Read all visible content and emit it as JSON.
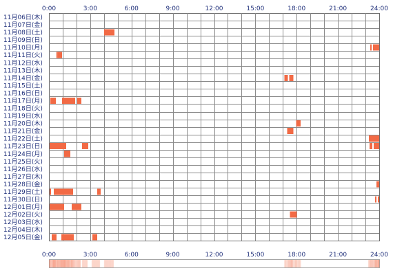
{
  "chart_data": {
    "type": "heatmap",
    "title": "",
    "xlabel": "",
    "ylabel": "",
    "x_unit": "hour of day",
    "xlim": [
      0,
      24
    ],
    "x_ticks": [
      "0:00",
      "3:00",
      "6:00",
      "9:00",
      "12:00",
      "15:00",
      "18:00",
      "21:00",
      "24:00"
    ],
    "grid_step_hours": 1,
    "bar_color": "#f26a45",
    "summary_strip": true,
    "rows": [
      {
        "label": "11月06日(木)",
        "intervals": []
      },
      {
        "label": "11月07日(金)",
        "intervals": []
      },
      {
        "label": "11月08日(土)",
        "intervals": [
          [
            4.0,
            4.75
          ]
        ]
      },
      {
        "label": "11月09日(日)",
        "intervals": []
      },
      {
        "label": "11月10日(月)",
        "intervals": [
          [
            23.35,
            23.45
          ],
          [
            23.55,
            24.0
          ]
        ]
      },
      {
        "label": "11月11日(火)",
        "intervals": [
          [
            0.5,
            0.55
          ],
          [
            0.6,
            0.95
          ]
        ]
      },
      {
        "label": "11月12日(水)",
        "intervals": []
      },
      {
        "label": "11月13日(木)",
        "intervals": []
      },
      {
        "label": "11月14日(金)",
        "intervals": [
          [
            17.1,
            17.35
          ],
          [
            17.45,
            17.75
          ]
        ]
      },
      {
        "label": "11月15日(土)",
        "intervals": []
      },
      {
        "label": "11月16日(日)",
        "intervals": []
      },
      {
        "label": "11月17日(月)",
        "intervals": [
          [
            0.1,
            0.5
          ],
          [
            0.95,
            1.9
          ],
          [
            2.05,
            2.35
          ]
        ]
      },
      {
        "label": "11月18日(火)",
        "intervals": []
      },
      {
        "label": "11月19日(水)",
        "intervals": []
      },
      {
        "label": "11月20日(木)",
        "intervals": [
          [
            17.95,
            18.3
          ]
        ]
      },
      {
        "label": "11月21日(金)",
        "intervals": [
          [
            17.3,
            17.75
          ]
        ]
      },
      {
        "label": "11月22日(土)",
        "intervals": [
          [
            23.25,
            24.0
          ]
        ]
      },
      {
        "label": "11月23日(日)",
        "intervals": [
          [
            0.05,
            1.25
          ],
          [
            2.4,
            2.85
          ],
          [
            23.3,
            23.5
          ],
          [
            23.6,
            24.0
          ]
        ]
      },
      {
        "label": "11月24日(月)",
        "intervals": [
          [
            1.1,
            1.55
          ]
        ]
      },
      {
        "label": "11月25日(火)",
        "intervals": []
      },
      {
        "label": "11月26日(水)",
        "intervals": []
      },
      {
        "label": "11月27日(木)",
        "intervals": []
      },
      {
        "label": "11月28日(金)",
        "intervals": [
          [
            23.8,
            24.0
          ]
        ]
      },
      {
        "label": "11月29日(土)",
        "intervals": [
          [
            0.05,
            0.15
          ],
          [
            0.35,
            1.75
          ],
          [
            3.5,
            3.75
          ]
        ]
      },
      {
        "label": "11月30日(日)",
        "intervals": [
          [
            23.7,
            23.8
          ],
          [
            23.9,
            24.0
          ]
        ]
      },
      {
        "label": "12月01日(月)",
        "intervals": [
          [
            0.05,
            1.1
          ],
          [
            1.65,
            2.35
          ]
        ]
      },
      {
        "label": "12月02日(火)",
        "intervals": [
          [
            17.5,
            18.0
          ]
        ]
      },
      {
        "label": "12月03日(水)",
        "intervals": []
      },
      {
        "label": "12月04日(木)",
        "intervals": []
      },
      {
        "label": "12月05日(金)",
        "intervals": [
          [
            0.2,
            0.55
          ],
          [
            0.9,
            1.8
          ],
          [
            3.15,
            3.5
          ]
        ]
      }
    ]
  }
}
